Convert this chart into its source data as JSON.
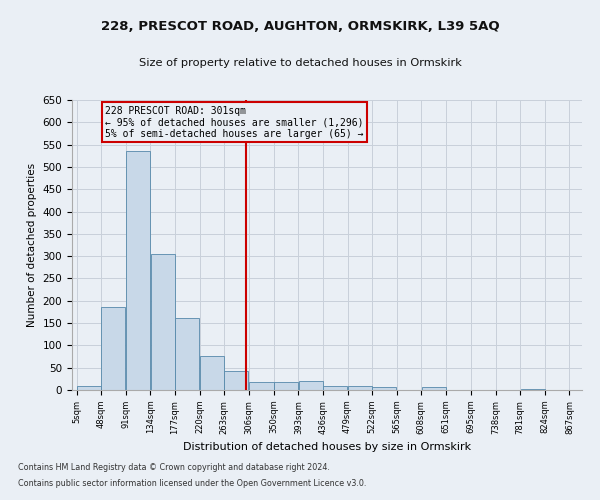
{
  "title1": "228, PRESCOT ROAD, AUGHTON, ORMSKIRK, L39 5AQ",
  "title2": "Size of property relative to detached houses in Ormskirk",
  "xlabel": "Distribution of detached houses by size in Ormskirk",
  "ylabel": "Number of detached properties",
  "footnote1": "Contains HM Land Registry data © Crown copyright and database right 2024.",
  "footnote2": "Contains public sector information licensed under the Open Government Licence v3.0.",
  "annotation_line1": "228 PRESCOT ROAD: 301sqm",
  "annotation_line2": "← 95% of detached houses are smaller (1,296)",
  "annotation_line3": "5% of semi-detached houses are larger (65) →",
  "property_size": 301,
  "bin_edges": [
    5,
    48,
    91,
    134,
    177,
    220,
    263,
    306,
    350,
    393,
    436,
    479,
    522,
    565,
    608,
    651,
    695,
    738,
    781,
    824,
    867
  ],
  "bin_counts": [
    8,
    186,
    535,
    304,
    162,
    76,
    42,
    18,
    19,
    20,
    10,
    10,
    7,
    0,
    6,
    0,
    1,
    0,
    3,
    0
  ],
  "bar_color": "#c8d8e8",
  "bar_edge_color": "#5588aa",
  "grid_color": "#c8d0da",
  "vline_color": "#cc0000",
  "background_color": "#eaeff5",
  "ylim": [
    0,
    650
  ],
  "yticks": [
    0,
    50,
    100,
    150,
    200,
    250,
    300,
    350,
    400,
    450,
    500,
    550,
    600,
    650
  ]
}
